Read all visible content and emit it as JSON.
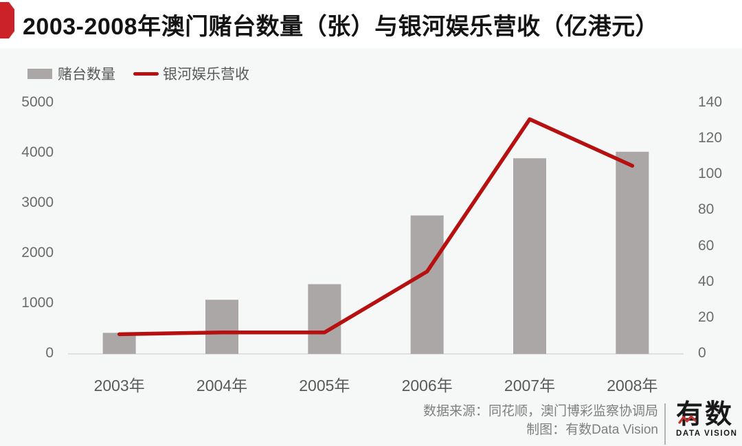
{
  "title": "2003-2008年澳门赌台数量（张）与银河娱乐营收（亿港元）",
  "legend": {
    "bar_label": "赌台数量",
    "line_label": "银河娱乐营收"
  },
  "chart_data": {
    "type": "bar",
    "subtype": "bar+line combo, dual axis",
    "title": "2003-2008年澳门赌台数量（张）与银河娱乐营收（亿港元）",
    "categories": [
      "2003年",
      "2004年",
      "2005年",
      "2006年",
      "2007年",
      "2008年"
    ],
    "series": [
      {
        "name": "赌台数量",
        "type": "bar",
        "axis": "left",
        "unit": "张",
        "color": "#aaa7a6",
        "values": [
          420,
          1080,
          1390,
          2760,
          3900,
          4030
        ]
      },
      {
        "name": "银河娱乐营收",
        "type": "line",
        "axis": "right",
        "unit": "亿港元",
        "color": "#b71010",
        "values": [
          11,
          12,
          12,
          46,
          131,
          105
        ]
      }
    ],
    "left_axis": {
      "min": 0,
      "max": 5000,
      "ticks": [
        0,
        1000,
        2000,
        3000,
        4000,
        5000
      ]
    },
    "right_axis": {
      "min": 0,
      "max": 140,
      "ticks": [
        0,
        20,
        40,
        60,
        80,
        100,
        120,
        140
      ]
    },
    "grid": false,
    "legend_position": "top-left"
  },
  "footer": {
    "source": "数据来源：同花顺，澳门博彩监察协调局",
    "credit": "制图：有数Data Vision",
    "logo_main": "有数",
    "logo_sub": "DATA VISION"
  },
  "colors": {
    "accent_red": "#cb2229",
    "line_red": "#b71010",
    "bar_gray": "#aaa7a6",
    "band_bg": "#f6f7f7",
    "axis_line": "#e0e0e0"
  }
}
